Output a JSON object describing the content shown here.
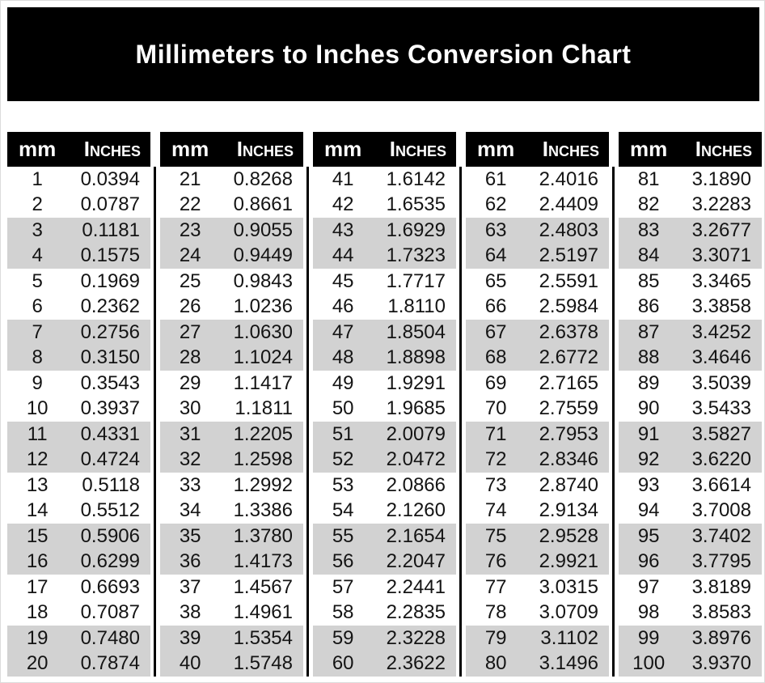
{
  "title": "Millimeters to Inches Conversion Chart",
  "table_header": {
    "mm_label": "mm",
    "inches_label": "Inches"
  },
  "colors": {
    "banner_bg": "#000000",
    "banner_text": "#ffffff",
    "header_bg": "#000000",
    "header_text": "#ffffff",
    "stripe_bg": "#d2d2d2",
    "row_bg": "#ffffff",
    "value_text": "#141414",
    "separator": "#000000"
  },
  "chart_data": {
    "type": "table",
    "title": "Millimeters to Inches Conversion Chart",
    "columns": [
      "mm",
      "Inches"
    ],
    "row_shading_pattern": "alternating pairs: 2 white rows then 2 gray rows",
    "groups": [
      {
        "mm_range": "1-20",
        "rows": [
          [
            "1",
            "0.0394"
          ],
          [
            "2",
            "0.0787"
          ],
          [
            "3",
            "0.1181"
          ],
          [
            "4",
            "0.1575"
          ],
          [
            "5",
            "0.1969"
          ],
          [
            "6",
            "0.2362"
          ],
          [
            "7",
            "0.2756"
          ],
          [
            "8",
            "0.3150"
          ],
          [
            "9",
            "0.3543"
          ],
          [
            "10",
            "0.3937"
          ],
          [
            "11",
            "0.4331"
          ],
          [
            "12",
            "0.4724"
          ],
          [
            "13",
            "0.5118"
          ],
          [
            "14",
            "0.5512"
          ],
          [
            "15",
            "0.5906"
          ],
          [
            "16",
            "0.6299"
          ],
          [
            "17",
            "0.6693"
          ],
          [
            "18",
            "0.7087"
          ],
          [
            "19",
            "0.7480"
          ],
          [
            "20",
            "0.7874"
          ]
        ]
      },
      {
        "mm_range": "21-40",
        "rows": [
          [
            "21",
            "0.8268"
          ],
          [
            "22",
            "0.8661"
          ],
          [
            "23",
            "0.9055"
          ],
          [
            "24",
            "0.9449"
          ],
          [
            "25",
            "0.9843"
          ],
          [
            "26",
            "1.0236"
          ],
          [
            "27",
            "1.0630"
          ],
          [
            "28",
            "1.1024"
          ],
          [
            "29",
            "1.1417"
          ],
          [
            "30",
            "1.1811"
          ],
          [
            "31",
            "1.2205"
          ],
          [
            "32",
            "1.2598"
          ],
          [
            "33",
            "1.2992"
          ],
          [
            "34",
            "1.3386"
          ],
          [
            "35",
            "1.3780"
          ],
          [
            "36",
            "1.4173"
          ],
          [
            "37",
            "1.4567"
          ],
          [
            "38",
            "1.4961"
          ],
          [
            "39",
            "1.5354"
          ],
          [
            "40",
            "1.5748"
          ]
        ]
      },
      {
        "mm_range": "41-60",
        "rows": [
          [
            "41",
            "1.6142"
          ],
          [
            "42",
            "1.6535"
          ],
          [
            "43",
            "1.6929"
          ],
          [
            "44",
            "1.7323"
          ],
          [
            "45",
            "1.7717"
          ],
          [
            "46",
            "1.8110"
          ],
          [
            "47",
            "1.8504"
          ],
          [
            "48",
            "1.8898"
          ],
          [
            "49",
            "1.9291"
          ],
          [
            "50",
            "1.9685"
          ],
          [
            "51",
            "2.0079"
          ],
          [
            "52",
            "2.0472"
          ],
          [
            "53",
            "2.0866"
          ],
          [
            "54",
            "2.1260"
          ],
          [
            "55",
            "2.1654"
          ],
          [
            "56",
            "2.2047"
          ],
          [
            "57",
            "2.2441"
          ],
          [
            "58",
            "2.2835"
          ],
          [
            "59",
            "2.3228"
          ],
          [
            "60",
            "2.3622"
          ]
        ]
      },
      {
        "mm_range": "61-80",
        "rows": [
          [
            "61",
            "2.4016"
          ],
          [
            "62",
            "2.4409"
          ],
          [
            "63",
            "2.4803"
          ],
          [
            "64",
            "2.5197"
          ],
          [
            "65",
            "2.5591"
          ],
          [
            "66",
            "2.5984"
          ],
          [
            "67",
            "2.6378"
          ],
          [
            "68",
            "2.6772"
          ],
          [
            "69",
            "2.7165"
          ],
          [
            "70",
            "2.7559"
          ],
          [
            "71",
            "2.7953"
          ],
          [
            "72",
            "2.8346"
          ],
          [
            "73",
            "2.8740"
          ],
          [
            "74",
            "2.9134"
          ],
          [
            "75",
            "2.9528"
          ],
          [
            "76",
            "2.9921"
          ],
          [
            "77",
            "3.0315"
          ],
          [
            "78",
            "3.0709"
          ],
          [
            "79",
            "3.1102"
          ],
          [
            "80",
            "3.1496"
          ]
        ]
      },
      {
        "mm_range": "81-100",
        "rows": [
          [
            "81",
            "3.1890"
          ],
          [
            "82",
            "3.2283"
          ],
          [
            "83",
            "3.2677"
          ],
          [
            "84",
            "3.3071"
          ],
          [
            "85",
            "3.3465"
          ],
          [
            "86",
            "3.3858"
          ],
          [
            "87",
            "3.4252"
          ],
          [
            "88",
            "3.4646"
          ],
          [
            "89",
            "3.5039"
          ],
          [
            "90",
            "3.5433"
          ],
          [
            "91",
            "3.5827"
          ],
          [
            "92",
            "3.6220"
          ],
          [
            "93",
            "3.6614"
          ],
          [
            "94",
            "3.7008"
          ],
          [
            "95",
            "3.7402"
          ],
          [
            "96",
            "3.7795"
          ],
          [
            "97",
            "3.8189"
          ],
          [
            "98",
            "3.8583"
          ],
          [
            "99",
            "3.8976"
          ],
          [
            "100",
            "3.9370"
          ]
        ]
      }
    ]
  }
}
